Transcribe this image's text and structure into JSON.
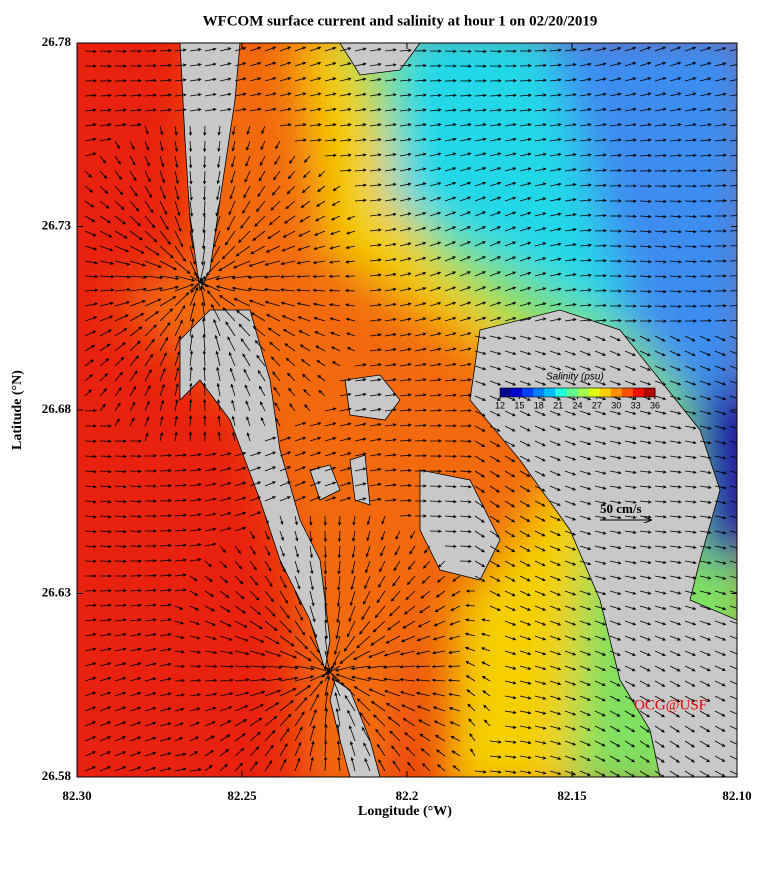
{
  "map": {
    "title": "WFCOM surface current and salinity at hour 1 on 02/20/2019",
    "x_label": "Longitude (°W)",
    "y_label": "Latitude (°N)",
    "xlim": [
      82.3,
      82.1
    ],
    "ylim": [
      26.58,
      26.78
    ],
    "xticks": [
      {
        "value": 82.3,
        "label": "82.30"
      },
      82.25,
      82.2,
      82.15,
      {
        "value": 82.1,
        "label": "82.10"
      }
    ],
    "yticks": [
      26.58,
      26.63,
      26.68,
      26.73,
      26.78
    ],
    "colorbar": {
      "label": "Salinity (psu)",
      "range": [
        12,
        36
      ],
      "ticks": [
        12,
        15,
        18,
        21,
        24,
        27,
        30,
        33,
        36
      ],
      "colors": [
        "#00008f",
        "#0000d0",
        "#0040ff",
        "#0080ff",
        "#00c0ff",
        "#20ffe0",
        "#60ff90",
        "#a0ff50",
        "#e0ff10",
        "#ffd000",
        "#ff9000",
        "#ff5000",
        "#f01000",
        "#b00000"
      ]
    },
    "scale_label": "50 cm/s",
    "credit": "OCG@USF"
  }
}
